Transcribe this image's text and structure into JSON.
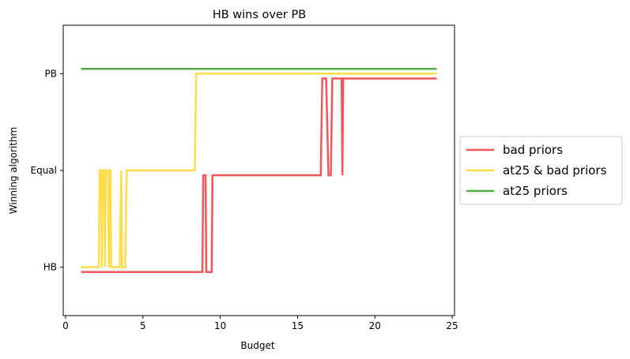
{
  "chart_data": {
    "type": "line",
    "title": "HB wins over PB",
    "xlabel": "Budget",
    "ylabel": "Winning algorithm",
    "xlim": [
      -0.15,
      25.15
    ],
    "x_ticks": [
      0,
      5,
      10,
      15,
      20,
      25
    ],
    "y_categories": [
      "HB",
      "Equal",
      "PB"
    ],
    "y_category_values": [
      0,
      1,
      2
    ],
    "ylim": [
      -0.5,
      2.5
    ],
    "grid": false,
    "legend_position": "center-right outside",
    "series": [
      {
        "name": "bad priors",
        "color": "#f04040",
        "points": [
          [
            1,
            -0.05
          ],
          [
            8.85,
            -0.05
          ],
          [
            8.9,
            0.95
          ],
          [
            9.05,
            0.95
          ],
          [
            9.1,
            -0.05
          ],
          [
            9.45,
            -0.05
          ],
          [
            9.5,
            0.95
          ],
          [
            16.5,
            0.95
          ],
          [
            16.6,
            1.95
          ],
          [
            16.85,
            1.95
          ],
          [
            17.0,
            0.95
          ],
          [
            17.15,
            0.95
          ],
          [
            17.25,
            1.95
          ],
          [
            17.85,
            1.95
          ],
          [
            17.9,
            0.95
          ],
          [
            17.95,
            1.95
          ],
          [
            24,
            1.95
          ]
        ]
      },
      {
        "name": "at25 & bad priors",
        "color": "#fcd933",
        "points": [
          [
            1,
            0
          ],
          [
            2.15,
            0
          ],
          [
            2.2,
            1
          ],
          [
            2.3,
            1
          ],
          [
            2.35,
            0
          ],
          [
            2.4,
            1
          ],
          [
            2.5,
            1
          ],
          [
            2.55,
            0
          ],
          [
            2.6,
            1
          ],
          [
            2.75,
            1
          ],
          [
            2.8,
            0
          ],
          [
            2.85,
            1
          ],
          [
            2.9,
            1
          ],
          [
            2.95,
            0
          ],
          [
            3.5,
            0
          ],
          [
            3.6,
            1
          ],
          [
            3.65,
            0
          ],
          [
            3.85,
            0
          ],
          [
            3.95,
            1
          ],
          [
            8.35,
            1
          ],
          [
            8.45,
            2
          ],
          [
            24,
            2
          ]
        ]
      },
      {
        "name": "at25 priors",
        "color": "#3b9e2c",
        "points": [
          [
            1,
            2.05
          ],
          [
            24,
            2.05
          ]
        ]
      }
    ]
  }
}
